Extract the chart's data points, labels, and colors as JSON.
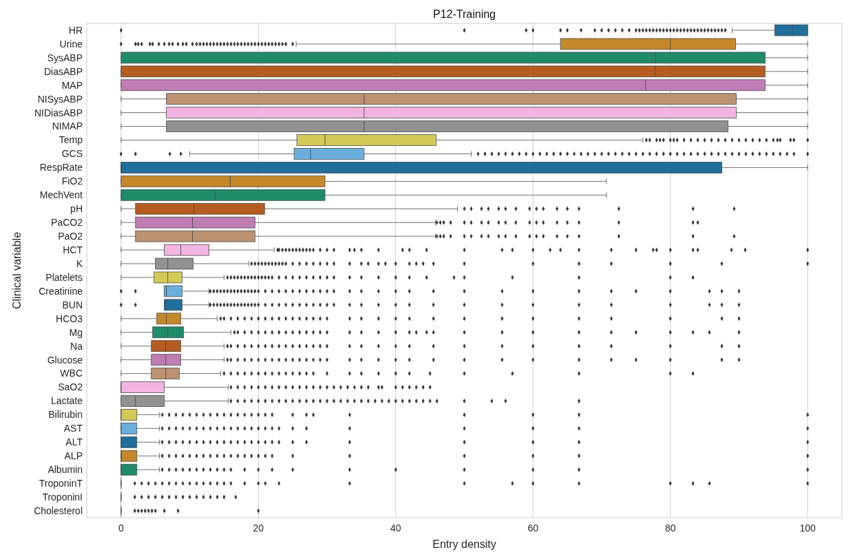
{
  "chart_data": {
    "type": "box",
    "title": "P12-Training",
    "xlabel": "Entry density",
    "ylabel": "Clinical variable",
    "orientation": "horizontal",
    "grid": "x",
    "marker": "diamond",
    "xlim": [
      -5,
      105
    ],
    "xticks": [
      0,
      20,
      40,
      60,
      80,
      100
    ],
    "categories": [
      "HR",
      "Urine",
      "SysABP",
      "DiasABP",
      "MAP",
      "NISysABP",
      "NIDiasABP",
      "NIMAP",
      "Temp",
      "GCS",
      "RespRate",
      "FiO2",
      "MechVent",
      "pH",
      "PaCO2",
      "PaO2",
      "HCT",
      "K",
      "Platelets",
      "Creatinine",
      "BUN",
      "HCO3",
      "Mg",
      "Na",
      "Glucose",
      "WBC",
      "SaO2",
      "Lactate",
      "Bilirubin",
      "AST",
      "ALT",
      "ALP",
      "Albumin",
      "TroponinT",
      "TroponinI",
      "Cholesterol"
    ],
    "colors": [
      "#1f6e9c",
      "#c4882a",
      "#1f8b6b",
      "#b65c21",
      "#c07db4",
      "#bc9272",
      "#f2b4e0",
      "#919191",
      "#d3c957",
      "#6aafdc",
      "#1f6e9c",
      "#c4882a",
      "#1f8b6b",
      "#b65c21",
      "#c07db4",
      "#bc9272",
      "#f2b4e0",
      "#919191",
      "#d3c957",
      "#6aafdc",
      "#1f6e9c",
      "#c4882a",
      "#1f8b6b",
      "#b65c21",
      "#c07db4",
      "#bc9272",
      "#f2b4e0",
      "#919191",
      "#d3c957",
      "#6aafdc",
      "#1f6e9c",
      "#c4882a",
      "#1f8b6b",
      null,
      null,
      null
    ],
    "boxes": [
      {
        "low": 89,
        "q1": 95.2,
        "median": 97.8,
        "q3": 100,
        "high": 100,
        "outliers": [
          0,
          50,
          59,
          60,
          64,
          65,
          67,
          69,
          70,
          71,
          72,
          73,
          74,
          75,
          75.5,
          76,
          76.5,
          77,
          77.5,
          78,
          78.5,
          79,
          79.5,
          80,
          80.5,
          81,
          81.5,
          82,
          82.5,
          83,
          83.5,
          84,
          84.5,
          85,
          85.5,
          86,
          86.5,
          87,
          87.5,
          88
        ]
      },
      {
        "low": 25.5,
        "q1": 64,
        "median": 80,
        "q3": 89.5,
        "high": 100,
        "outliers": [
          0,
          2.1,
          2.5,
          3,
          4.2,
          4.6,
          5.5,
          6.3,
          7,
          7.5,
          8.3,
          9,
          9.5,
          10.4,
          11,
          11.5,
          12,
          12.5,
          13,
          13.5,
          14,
          14.5,
          15,
          15.5,
          16,
          16.5,
          17,
          17.5,
          18,
          18.5,
          19,
          19.5,
          20,
          20.5,
          21,
          21.5,
          22,
          22.5,
          23,
          23.5,
          24,
          25
        ]
      },
      {
        "low": 0,
        "q1": 0,
        "median": 77.8,
        "q3": 93.8,
        "high": 100
      },
      {
        "low": 0,
        "q1": 0,
        "median": 77.8,
        "q3": 93.8,
        "high": 100
      },
      {
        "low": 0,
        "q1": 0,
        "median": 76.4,
        "q3": 93.8,
        "high": 100
      },
      {
        "low": 0,
        "q1": 6.6,
        "median": 35.4,
        "q3": 89.6,
        "high": 100
      },
      {
        "low": 0,
        "q1": 6.6,
        "median": 35.4,
        "q3": 89.6,
        "high": 100
      },
      {
        "low": 0,
        "q1": 6.6,
        "median": 35.4,
        "q3": 88.4,
        "high": 100
      },
      {
        "low": 0,
        "q1": 25.6,
        "median": 29.7,
        "q3": 45.9,
        "high": 76,
        "outliers": [
          76.5,
          77,
          78,
          78.5,
          79,
          80,
          80.5,
          81,
          82,
          83,
          84,
          85,
          86,
          87,
          88,
          89,
          90,
          91,
          92,
          93,
          94,
          95,
          95.6,
          96,
          97.5,
          98,
          100
        ]
      },
      {
        "low": 10,
        "q1": 25.2,
        "median": 27.6,
        "q3": 35.4,
        "high": 51,
        "outliers": [
          0,
          2.1,
          7.1,
          8.7,
          52,
          53,
          54,
          55,
          56,
          57,
          58,
          59,
          60,
          61,
          62,
          63,
          64,
          65,
          66,
          67,
          68,
          69,
          70,
          71,
          72,
          73,
          74,
          75,
          76,
          77,
          78,
          79,
          80,
          81,
          82,
          83,
          84,
          85,
          86,
          87,
          88,
          89,
          90,
          91,
          92,
          93,
          94,
          95,
          96,
          97,
          98,
          100
        ]
      },
      {
        "low": 0,
        "q1": 0,
        "median": 0,
        "q3": 87.5,
        "high": 100
      },
      {
        "low": 0,
        "q1": 0,
        "median": 15.9,
        "q3": 29.7,
        "high": 70.7
      },
      {
        "low": 0,
        "q1": 0,
        "median": 13.7,
        "q3": 29.7,
        "high": 70.7
      },
      {
        "low": 0,
        "q1": 2.1,
        "median": 10.6,
        "q3": 20.9,
        "high": 49,
        "outliers": [
          50,
          51,
          52.5,
          53.5,
          55,
          56,
          57.5,
          59.5,
          60.5,
          61.5,
          63.5,
          65,
          66.7,
          72.5,
          83.3,
          89.3
        ]
      },
      {
        "low": 0,
        "q1": 2.1,
        "median": 10.4,
        "q3": 19.5,
        "high": 45.8,
        "outliers": [
          46,
          46.5,
          47,
          48,
          50,
          51,
          52.5,
          53.5,
          55,
          56,
          57.5,
          59.5,
          60.5,
          61.5,
          63.5,
          65,
          66.7,
          72.5,
          83.3,
          84
        ]
      },
      {
        "low": 0,
        "q1": 2.1,
        "median": 10.4,
        "q3": 19.5,
        "high": 45.8,
        "outliers": [
          46,
          46.5,
          47,
          48,
          50,
          51,
          52.5,
          53.5,
          55,
          56,
          57.5,
          59.5,
          60.5,
          61.5,
          63.5,
          65,
          66.7,
          72.5,
          83.3,
          89.3
        ]
      },
      {
        "low": 0,
        "q1": 6.3,
        "median": 8.7,
        "q3": 12.8,
        "high": 22.3,
        "outliers": [
          22.8,
          23,
          23.5,
          24,
          24.5,
          25,
          25.5,
          26,
          26.5,
          27,
          27.5,
          28,
          29,
          30,
          31,
          33.3,
          34,
          35,
          37.5,
          41,
          42,
          44.5,
          50,
          55.5,
          57,
          60,
          62.5,
          64,
          66.7,
          71.4,
          75,
          77.5,
          78,
          80,
          83.3,
          84,
          88.9,
          90.9,
          100
        ]
      },
      {
        "low": 0,
        "q1": 5,
        "median": 6.8,
        "q3": 10.5,
        "high": 18.6,
        "outliers": [
          19,
          19.5,
          20,
          20.5,
          21,
          21.5,
          22,
          22.5,
          23,
          23.5,
          24,
          25,
          26,
          27,
          28,
          29,
          30,
          31,
          33.3,
          35,
          36,
          37.5,
          38.5,
          40,
          42,
          43,
          44,
          45.5,
          50,
          60,
          66.7,
          71.4,
          80,
          87.5,
          100
        ]
      },
      {
        "low": 0,
        "q1": 4.8,
        "median": 6.8,
        "q3": 8.9,
        "high": 15,
        "outliers": [
          15.5,
          16,
          16.5,
          17,
          17.5,
          18,
          18.5,
          19,
          19.5,
          20,
          20.5,
          21,
          21.5,
          22,
          23,
          24,
          25,
          26,
          27,
          28,
          29,
          30,
          31,
          33.3,
          35,
          37.5,
          40,
          42,
          44.5,
          48.5,
          50,
          57,
          66.7,
          80,
          83.3
        ]
      },
      {
        "low": 6.3,
        "q1": 6.3,
        "median": 6.6,
        "q3": 8.9,
        "high": 12.8,
        "outliers": [
          0,
          2.1,
          13,
          13.5,
          14,
          14.5,
          15,
          15.5,
          16,
          16.5,
          17,
          17.5,
          18,
          18.5,
          19,
          19.5,
          20,
          21,
          22,
          23,
          24,
          25,
          26,
          27,
          28,
          29,
          30,
          31,
          33.3,
          35,
          37.5,
          40,
          42,
          45.5,
          50,
          55.5,
          60,
          66.7,
          71.4,
          75,
          80,
          85.7,
          87.5,
          90
        ]
      },
      {
        "low": 6.3,
        "q1": 6.3,
        "median": 6.5,
        "q3": 8.9,
        "high": 12.8,
        "outliers": [
          0,
          2.1,
          13,
          13.5,
          14,
          14.5,
          15,
          15.5,
          16,
          16.5,
          17,
          17.5,
          18,
          18.5,
          19,
          19.5,
          20,
          21,
          22,
          23,
          24,
          25,
          26,
          27,
          28,
          29,
          30,
          31,
          33.3,
          35,
          37.5,
          40,
          42,
          45.5,
          50,
          55.5,
          60,
          66.7,
          71.4,
          80,
          85.7,
          87.5,
          90
        ]
      },
      {
        "low": 0,
        "q1": 5.2,
        "median": 6.6,
        "q3": 8.7,
        "high": 14,
        "outliers": [
          14.5,
          15,
          16,
          17,
          18,
          19,
          20,
          21,
          22,
          23,
          24,
          25,
          26,
          27,
          28,
          29,
          30,
          33.3,
          35,
          37.5,
          40,
          42,
          45.5,
          50,
          55.5,
          60,
          66.7,
          71.4,
          80,
          87.5,
          90
        ]
      },
      {
        "low": 0,
        "q1": 4.6,
        "median": 6.8,
        "q3": 9.1,
        "high": 16,
        "outliers": [
          16.5,
          17,
          18,
          19,
          20,
          21,
          22,
          23,
          24,
          25,
          26,
          27,
          28,
          29,
          30,
          33.3,
          35,
          37.5,
          40,
          42,
          43,
          44.5,
          45.5,
          50,
          55.5,
          60,
          66.7,
          71.4,
          75,
          80,
          83.3,
          85.7,
          90
        ]
      },
      {
        "low": 0,
        "q1": 4.4,
        "median": 6.5,
        "q3": 8.7,
        "high": 15,
        "outliers": [
          15.5,
          16,
          17,
          18,
          19,
          20,
          21,
          22,
          23,
          24,
          25,
          26,
          27,
          28,
          29,
          30,
          33.3,
          35,
          37.5,
          40,
          42,
          45.5,
          50,
          55.5,
          60,
          66.7,
          71.4,
          80,
          87.5,
          90
        ]
      },
      {
        "low": 0,
        "q1": 4.4,
        "median": 6.5,
        "q3": 8.7,
        "high": 15,
        "outliers": [
          15.5,
          16,
          17,
          18,
          19,
          20,
          21,
          22,
          23,
          24,
          25,
          26,
          27,
          28,
          29,
          30,
          33.3,
          35,
          37.5,
          40,
          42,
          45.5,
          50,
          55.5,
          60,
          66.7,
          71.4,
          75,
          80,
          87.5,
          90
        ]
      },
      {
        "low": 0,
        "q1": 4.4,
        "median": 6.5,
        "q3": 8.5,
        "high": 14.5,
        "outliers": [
          15,
          16,
          17,
          18,
          19,
          20,
          21,
          22,
          23,
          24,
          25,
          26,
          27,
          28,
          30,
          33.3,
          35,
          37.5,
          40,
          42,
          45,
          50,
          57,
          66.7,
          80,
          83.3
        ]
      },
      {
        "low": 0,
        "q1": 0,
        "median": 0,
        "q3": 6.3,
        "high": 15.6,
        "outliers": [
          16,
          17,
          18,
          19,
          20,
          21,
          22,
          23,
          24,
          25,
          26,
          27,
          28,
          29,
          30,
          31,
          32,
          33,
          34,
          35,
          36,
          37.5,
          38,
          40,
          41,
          42,
          43,
          44,
          45
        ]
      },
      {
        "low": 0,
        "q1": 0,
        "median": 2.1,
        "q3": 6.3,
        "high": 15.6,
        "outliers": [
          16,
          17,
          18,
          19,
          20,
          21,
          22,
          23,
          24,
          25,
          26,
          27,
          28,
          29,
          30,
          31,
          32,
          33,
          34,
          35,
          36,
          37,
          38,
          39,
          40,
          41,
          42,
          43,
          44,
          45,
          46,
          50,
          54,
          56,
          66.7
        ]
      },
      {
        "low": 0,
        "q1": 0,
        "median": 0,
        "q3": 2.3,
        "high": 5.6,
        "outliers": [
          6,
          7,
          8,
          9,
          10,
          11,
          12,
          13,
          14,
          15,
          16,
          17,
          18,
          19,
          20,
          21,
          22,
          25,
          27,
          28,
          33.3,
          50,
          60,
          66.7,
          100
        ]
      },
      {
        "low": 0,
        "q1": 0,
        "median": 0,
        "q3": 2.3,
        "high": 5.6,
        "outliers": [
          6,
          7,
          8,
          9,
          10,
          11,
          12,
          13,
          14,
          15,
          16,
          17,
          18,
          19,
          20,
          21,
          22,
          23,
          25,
          27,
          33.3,
          50,
          60,
          66.7,
          100
        ]
      },
      {
        "low": 0,
        "q1": 0,
        "median": 0,
        "q3": 2.3,
        "high": 5.6,
        "outliers": [
          6,
          7,
          8,
          9,
          10,
          11,
          12,
          13,
          14,
          15,
          16,
          17,
          18,
          19,
          20,
          21,
          22,
          23,
          25,
          27,
          33.3,
          50,
          60,
          66.7,
          100
        ]
      },
      {
        "low": 0,
        "q1": 0,
        "median": 0,
        "q3": 2.3,
        "high": 5.6,
        "outliers": [
          6,
          7,
          8,
          9,
          10,
          11,
          12,
          13,
          14,
          15,
          16,
          17,
          18,
          19,
          20,
          21,
          22,
          25,
          33.3,
          50,
          60,
          66.7,
          100
        ]
      },
      {
        "low": 0,
        "q1": 0,
        "median": 0,
        "q3": 2.3,
        "high": 5.6,
        "outliers": [
          6,
          7,
          8,
          9,
          10,
          11,
          12,
          13,
          14,
          15,
          16,
          18,
          20,
          22,
          25,
          33.3,
          40,
          50,
          60,
          66.7,
          100
        ]
      },
      {
        "low": 0,
        "q1": 0,
        "median": 0,
        "q3": 0,
        "high": 0,
        "outliers": [
          2,
          3,
          4,
          5,
          6,
          7,
          8,
          9,
          10,
          11,
          12,
          13,
          14,
          15,
          16,
          18,
          20,
          21,
          23,
          33.3,
          50,
          57,
          60,
          66.7,
          80,
          83.3,
          85.7,
          100
        ]
      },
      {
        "low": 0,
        "q1": 0,
        "median": 0,
        "q3": 0,
        "high": 0,
        "outliers": [
          2,
          3,
          4,
          5,
          6,
          7,
          8,
          9,
          10,
          11,
          12,
          13,
          14,
          15,
          16.7
        ]
      },
      {
        "low": 0,
        "q1": 0,
        "median": 0,
        "q3": 0,
        "high": 0,
        "outliers": [
          2,
          2.5,
          3,
          3.5,
          4,
          4.5,
          5,
          6.3,
          8.3,
          20
        ]
      }
    ]
  }
}
